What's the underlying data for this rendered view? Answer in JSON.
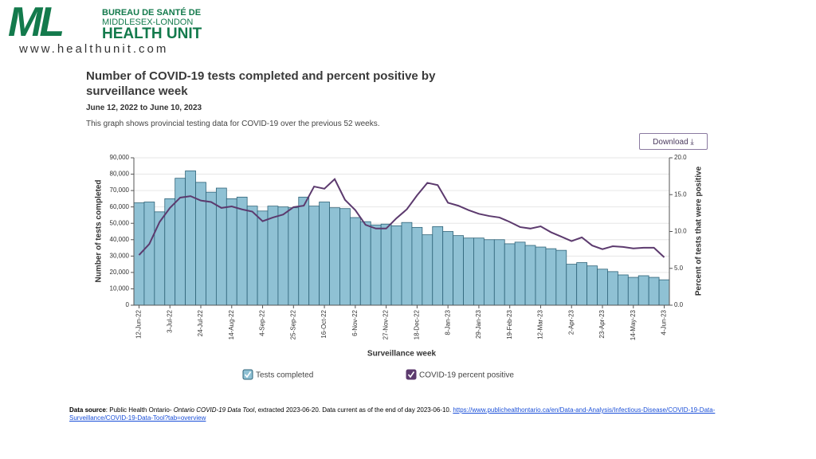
{
  "header": {
    "logo_mark": "ML",
    "logo_line1": "BUREAU DE SANTÉ DE",
    "logo_line2": "MIDDLESEX-LONDON",
    "logo_line3": "HEALTH UNIT",
    "website": "www.healthunit.com"
  },
  "chart_data": {
    "type": "bar",
    "title": "Number of COVID-19 tests completed and percent positive by surveillance week",
    "subtitle": "June 12, 2022 to June 10, 2023",
    "description": "This graph shows provincial testing data for COVID-19 over the previous 52 weeks.",
    "button": "Download",
    "xlabel": "Surveillance week",
    "ylabel": "Number of tests completed",
    "y2label": "Percent of tests that were positive",
    "categories": [
      "12-Jun-22",
      null,
      null,
      "3-Jul-22",
      null,
      null,
      "24-Jul-22",
      null,
      null,
      "14-Aug-22",
      null,
      null,
      "4-Sep-22",
      null,
      null,
      "25-Sep-22",
      null,
      null,
      "16-Oct-22",
      null,
      null,
      "6-Nov-22",
      null,
      null,
      "27-Nov-22",
      null,
      null,
      "18-Dec-22",
      null,
      null,
      "8-Jan-23",
      null,
      null,
      "29-Jan-23",
      null,
      null,
      "19-Feb-23",
      null,
      null,
      "12-Mar-23",
      null,
      null,
      "2-Apr-23",
      null,
      null,
      "23-Apr-23",
      null,
      null,
      "14-May-23",
      null,
      null,
      "4-Jun-23"
    ],
    "series": [
      {
        "name": "Tests completed",
        "type": "bar",
        "color": "#8fc1d4",
        "edge": "#2e6378",
        "values": [
          62500,
          63000,
          57000,
          65000,
          77500,
          82000,
          75000,
          69000,
          71500,
          65000,
          66000,
          60500,
          57500,
          60500,
          60000,
          59500,
          66000,
          60500,
          63000,
          59500,
          59000,
          53500,
          51000,
          49000,
          49500,
          48500,
          50500,
          47500,
          43000,
          48000,
          45000,
          42500,
          41000,
          41000,
          40000,
          40000,
          37500,
          38500,
          36500,
          35500,
          34500,
          33500,
          25000,
          26000,
          24000,
          22000,
          20500,
          18500,
          17000,
          18000,
          17000,
          15500
        ]
      },
      {
        "name": "COVID-19 percent positive",
        "type": "line",
        "axis": "y2",
        "color": "#5c3a6e",
        "values": [
          6.8,
          8.3,
          11.3,
          13.2,
          14.6,
          14.8,
          14.2,
          14.0,
          13.2,
          13.4,
          13.0,
          12.7,
          11.4,
          11.9,
          12.3,
          13.3,
          13.5,
          16.1,
          15.8,
          17.1,
          14.3,
          12.9,
          10.9,
          10.4,
          10.4,
          11.8,
          13.0,
          14.9,
          16.6,
          16.3,
          13.9,
          13.5,
          12.9,
          12.4,
          12.1,
          11.9,
          11.3,
          10.6,
          10.4,
          10.7,
          9.9,
          9.3,
          8.7,
          9.2,
          8.1,
          7.6,
          8.0,
          7.9,
          7.7,
          7.8,
          7.8,
          6.5
        ]
      }
    ],
    "ylim": [
      0,
      90000
    ],
    "yticks": [
      0,
      {
        "value": 10000,
        "label": "10,000"
      },
      {
        "value": 20000,
        "label": "20,000"
      },
      {
        "value": 30000,
        "label": "30,000"
      },
      {
        "value": 40000,
        "label": "40,000"
      },
      {
        "value": 50000,
        "label": "50,000"
      },
      {
        "value": 60000,
        "label": "60,000"
      },
      {
        "value": 70000,
        "label": "70,000"
      },
      {
        "value": 80000,
        "label": "80,000"
      },
      {
        "value": 90000,
        "label": "90,000"
      }
    ],
    "y2lim": [
      0,
      20
    ],
    "y2ticks": [
      {
        "value": 0,
        "label": "0.0"
      },
      {
        "value": 5,
        "label": "5.0"
      },
      {
        "value": 10,
        "label": "10.0"
      },
      {
        "value": 15,
        "label": "15.0"
      },
      {
        "value": 20,
        "label": "20.0"
      }
    ],
    "grid": true
  },
  "footer": {
    "source_label": "Data source",
    "source_text": ": Public Health Ontario- ",
    "source_title": "Ontario COVID-19 Data Tool",
    "source_rest": ", extracted 2023-06-20. Data current as of the end of day 2023-06-10. ",
    "link": "https://www.publichealthontario.ca/en/Data-and-Analysis/Infectious-Disease/COVID-19-Data-Surveillance/COVID-19-Data-Tool?tab=overview"
  }
}
